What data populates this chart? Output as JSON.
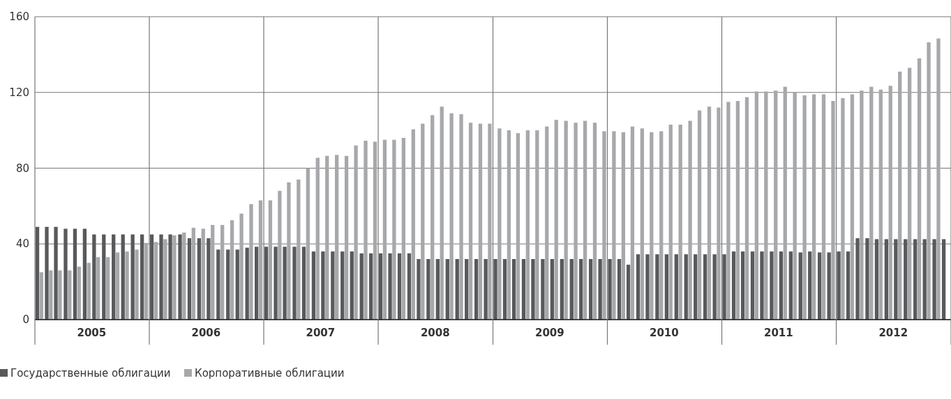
{
  "chart_data": {
    "type": "bar",
    "x": [
      "2005-01-16",
      "2005-02-15",
      "2005-03-16",
      "2005-04-16",
      "2005-05-16",
      "2005-06-16",
      "2005-07-16",
      "2005-08-16",
      "2005-09-16",
      "2005-10-16",
      "2005-11-16",
      "2005-12-16",
      "2006-01-16",
      "2006-02-15",
      "2006-03-16",
      "2006-04-16",
      "2006-05-16",
      "2006-06-16",
      "2006-07-16",
      "2006-08-16",
      "2006-09-16",
      "2006-10-16",
      "2006-11-16",
      "2006-12-16",
      "2007-01-16",
      "2007-02-15",
      "2007-03-16",
      "2007-04-16",
      "2007-05-16",
      "2007-06-16",
      "2007-07-16",
      "2007-08-16",
      "2007-09-16",
      "2007-10-16",
      "2007-11-16",
      "2007-12-16",
      "2008-01-16",
      "2008-02-15",
      "2008-03-16",
      "2008-04-16",
      "2008-05-16",
      "2008-06-16",
      "2008-07-16",
      "2008-08-16",
      "2008-09-16",
      "2008-10-16",
      "2008-11-16",
      "2008-12-16",
      "2009-01-16",
      "2009-02-15",
      "2009-03-16",
      "2009-04-16",
      "2009-05-16",
      "2009-06-16",
      "2009-07-16",
      "2009-08-16",
      "2009-09-16",
      "2009-10-16",
      "2009-11-16",
      "2009-12-16",
      "2010-01-16",
      "2010-02-15",
      "2010-03-16",
      "2010-04-16",
      "2010-05-16",
      "2010-06-16",
      "2010-07-16",
      "2010-08-16",
      "2010-09-16",
      "2010-10-16",
      "2010-11-16",
      "2010-12-16",
      "2011-01-16",
      "2011-02-15",
      "2011-03-16",
      "2011-04-16",
      "2011-05-16",
      "2011-06-16",
      "2011-07-16",
      "2011-08-16",
      "2011-09-16",
      "2011-10-16",
      "2011-11-16",
      "2011-12-16",
      "2012-01-16",
      "2012-02-15",
      "2012-03-16",
      "2012-04-16",
      "2012-05-16",
      "2012-06-16",
      "2012-07-16",
      "2012-08-16",
      "2012-09-16",
      "2012-10-16",
      "2012-11-16",
      "2012-12-16"
    ],
    "series": [
      {
        "name": "Государственные облигации",
        "color": "#58595b",
        "values": [
          49,
          49,
          49,
          48,
          48,
          48,
          45,
          45,
          45,
          45,
          45,
          45,
          45,
          45,
          45,
          45,
          43,
          43,
          43,
          37,
          37,
          37,
          38,
          38.5,
          38.5,
          38.5,
          38.5,
          38.5,
          38.5,
          36,
          36,
          36,
          36,
          36,
          35,
          35,
          35,
          35,
          35,
          35,
          32,
          32,
          32,
          32,
          32,
          32,
          32,
          32,
          32,
          32,
          32,
          32,
          32,
          32,
          32,
          32,
          32,
          32,
          32,
          32,
          32,
          32,
          29,
          34.5,
          34.5,
          34.5,
          34.5,
          34.5,
          34.5,
          34.5,
          34.5,
          34.5,
          34.5,
          36,
          36,
          36,
          36,
          36,
          36,
          36,
          35.5,
          36,
          35.5,
          35.5,
          36,
          36,
          43,
          43,
          42.5,
          42.5,
          42.5,
          42.5,
          42.5,
          42.5,
          42.5,
          42.5
        ]
      },
      {
        "name": "Корпоративные облигации",
        "color": "#a7a8ab",
        "values": [
          25,
          26,
          26,
          26,
          28,
          30,
          33,
          33,
          35.5,
          36,
          37,
          40.5,
          41,
          42.5,
          44.5,
          46,
          48.5,
          48,
          50,
          50,
          52.5,
          56,
          61,
          63,
          63,
          68,
          72.5,
          74,
          80,
          85.5,
          86.5,
          87,
          86.5,
          92,
          94.5,
          94,
          95,
          95,
          96,
          100.5,
          103.5,
          108,
          112.5,
          109,
          108.5,
          104,
          103.5,
          103.5,
          101,
          100,
          98.5,
          100,
          100,
          102,
          105.5,
          105,
          104,
          105,
          104,
          99.5,
          99.5,
          99,
          102,
          101,
          99,
          99.5,
          103,
          103,
          105,
          110.5,
          112.5,
          112,
          115,
          115.5,
          117.5,
          120.5,
          120.5,
          121,
          123,
          120,
          118.5,
          119,
          119,
          115.5,
          117,
          119,
          121,
          123,
          121.5,
          123.5,
          131,
          133,
          138,
          146.5,
          148.5,
          null
        ]
      }
    ],
    "xlim": [
      "2005-01",
      "2013-01"
    ],
    "xticks": [
      {
        "value": "2005-01",
        "label": null
      },
      {
        "value": "2005-07",
        "label": "2005"
      },
      {
        "value": "2006-01",
        "label": null
      },
      {
        "value": "2006-07",
        "label": "2006"
      },
      {
        "value": "2007-01",
        "label": null
      },
      {
        "value": "2007-07",
        "label": "2007"
      },
      {
        "value": "2008-01",
        "label": null
      },
      {
        "value": "2008-07",
        "label": "2008"
      },
      {
        "value": "2009-01",
        "label": null
      },
      {
        "value": "2009-07",
        "label": "2009"
      },
      {
        "value": "2010-01",
        "label": null
      },
      {
        "value": "2010-07",
        "label": "2010"
      },
      {
        "value": "2011-01",
        "label": null
      },
      {
        "value": "2011-07",
        "label": "2011"
      },
      {
        "value": "2012-01",
        "label": null
      },
      {
        "value": "2012-07",
        "label": "2012"
      },
      {
        "value": "2013-01",
        "label": null
      }
    ],
    "ylim": [
      0,
      160
    ],
    "yticks": [
      0,
      40,
      80,
      120,
      160
    ],
    "grid": true,
    "legend": "bottom left"
  }
}
